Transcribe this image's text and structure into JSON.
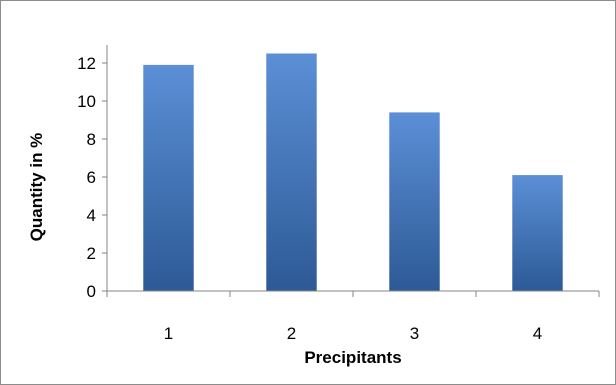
{
  "chart_data": {
    "type": "bar",
    "categories": [
      "1",
      "2",
      "3",
      "4"
    ],
    "values": [
      11.9,
      12.5,
      9.4,
      6.1
    ],
    "xlabel": "Precipitants",
    "ylabel": "Quantity in %",
    "ylim": [
      0,
      12
    ],
    "yticks": [
      0,
      2,
      4,
      6,
      8,
      10,
      12
    ],
    "grid": false,
    "legend": "none",
    "bar_color_light": "#5b8fd6",
    "bar_color_dark": "#2d5a96",
    "axis_color": "#868686"
  }
}
